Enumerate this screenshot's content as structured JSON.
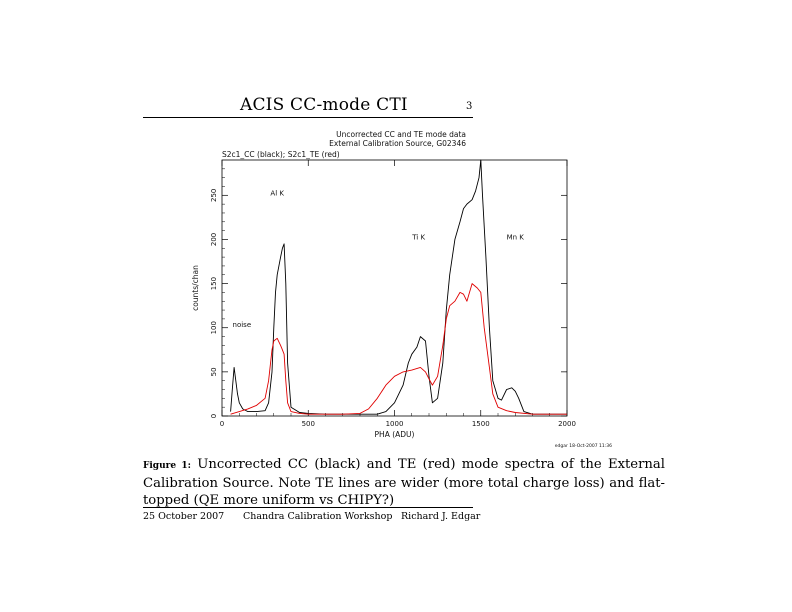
{
  "header": {
    "title": "ACIS CC-mode CTI",
    "page_number": "3"
  },
  "figure": {
    "caption_label": "Figure 1:",
    "caption_text": "Uncorrected CC (black) and TE (red) mode spectra of the External Calibration Source. Note TE lines are wider (more total charge loss) and flat-topped (QE more uniform vs CHIPY?)"
  },
  "footer": {
    "date": "25 October 2007",
    "event": "Chandra Calibration Workshop",
    "author": "Richard J. Edgar"
  },
  "chart_data": {
    "type": "line",
    "title_lines": [
      "Uncorrected CC and TE mode data",
      "External Calibration Source, G02346"
    ],
    "subtitle": "S2c1_CC (black); S2c1_TE (red)",
    "xlabel": "PHA (ADU)",
    "ylabel": "counts/chan",
    "xlim": [
      0,
      2000
    ],
    "ylim": [
      0,
      290
    ],
    "xticks": [
      0,
      500,
      1000,
      1500,
      2000
    ],
    "yticks": [
      0,
      50,
      100,
      150,
      200,
      250
    ],
    "annotations": [
      {
        "text": "Al K",
        "x": 320,
        "y": 250
      },
      {
        "text": "Ti K",
        "x": 1140,
        "y": 200
      },
      {
        "text": "Mn K",
        "x": 1700,
        "y": 200
      },
      {
        "text": "noise",
        "x": 115,
        "y": 101
      }
    ],
    "stamp": "edgar 18-Oct-2007 11:36",
    "series": [
      {
        "color": "#000000",
        "x": [
          50,
          60,
          70,
          80,
          90,
          100,
          120,
          150,
          200,
          250,
          270,
          290,
          300,
          310,
          320,
          330,
          340,
          350,
          360,
          370,
          380,
          400,
          450,
          500,
          600,
          700,
          800,
          900,
          950,
          1000,
          1050,
          1080,
          1100,
          1130,
          1150,
          1180,
          1200,
          1220,
          1250,
          1280,
          1300,
          1320,
          1350,
          1380,
          1400,
          1420,
          1450,
          1470,
          1490,
          1500,
          1510,
          1530,
          1550,
          1570,
          1600,
          1620,
          1650,
          1680,
          1700,
          1720,
          1750,
          1800,
          1900,
          2000
        ],
        "y": [
          5,
          30,
          55,
          40,
          25,
          15,
          8,
          5,
          5,
          6,
          15,
          50,
          100,
          140,
          160,
          170,
          180,
          190,
          195,
          150,
          60,
          10,
          4,
          3,
          2,
          2,
          2,
          2,
          5,
          15,
          35,
          60,
          70,
          78,
          90,
          85,
          45,
          15,
          20,
          60,
          120,
          160,
          200,
          220,
          235,
          240,
          245,
          255,
          270,
          290,
          250,
          180,
          100,
          40,
          20,
          18,
          30,
          32,
          28,
          20,
          5,
          2,
          2,
          2
        ]
      },
      {
        "color": "#e00000",
        "x": [
          50,
          100,
          150,
          200,
          250,
          270,
          290,
          300,
          320,
          340,
          350,
          360,
          370,
          380,
          400,
          450,
          500,
          600,
          700,
          800,
          850,
          900,
          950,
          1000,
          1050,
          1100,
          1150,
          1180,
          1200,
          1220,
          1250,
          1280,
          1300,
          1320,
          1350,
          1380,
          1400,
          1420,
          1450,
          1480,
          1500,
          1520,
          1550,
          1570,
          1600,
          1650,
          1700,
          1800,
          1900,
          2000
        ],
        "y": [
          2,
          5,
          8,
          12,
          20,
          40,
          75,
          85,
          88,
          80,
          75,
          70,
          40,
          15,
          5,
          3,
          2,
          2,
          2,
          3,
          8,
          20,
          35,
          45,
          50,
          52,
          55,
          50,
          42,
          35,
          45,
          80,
          110,
          125,
          130,
          140,
          138,
          130,
          150,
          145,
          140,
          100,
          55,
          25,
          10,
          6,
          4,
          2,
          2,
          2
        ]
      }
    ]
  }
}
